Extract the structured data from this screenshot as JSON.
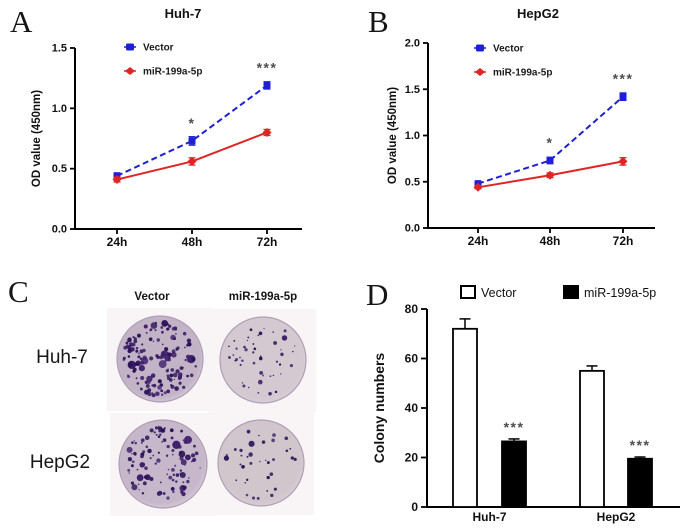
{
  "panels": {
    "a": "A",
    "b": "B",
    "c": "C",
    "d": "D"
  },
  "colors": {
    "vector_blue": "#1f1fd3",
    "mir_red": "#e02424",
    "star_gray": "#4d4d4d",
    "axis": "#000000",
    "colony_dot": "#2b1258"
  },
  "panel_c": {
    "column_labels": [
      "Vector",
      "miR-199a-5p"
    ],
    "row_labels": [
      "Huh-7",
      "HepG2"
    ],
    "dishes": [
      {
        "cell_line": "Huh-7",
        "group": "Vector",
        "dot_count": 150,
        "bg": "#c2b3c7",
        "density": "high"
      },
      {
        "cell_line": "Huh-7",
        "group": "miR-199a-5p",
        "dot_count": 48,
        "bg": "#d4c9d1",
        "density": "low"
      },
      {
        "cell_line": "HepG2",
        "group": "Vector",
        "dot_count": 105,
        "bg": "#c6b8ca",
        "density": "high"
      },
      {
        "cell_line": "HepG2",
        "group": "miR-199a-5p",
        "dot_count": 36,
        "bg": "#d1c6cb",
        "density": "low"
      }
    ]
  },
  "chart_data": [
    {
      "panel": "A",
      "type": "line",
      "title": "Huh-7",
      "ylabel": "OD value (450nm)",
      "x_categories": [
        "24h",
        "48h",
        "72h"
      ],
      "ylim": [
        0,
        1.5
      ],
      "yticks": [
        "0.0",
        "0.5",
        "1.0",
        "1.5"
      ],
      "series": [
        {
          "name": "Vector",
          "color": "#1f1fd3",
          "line": "dashed",
          "marker": "square",
          "values": [
            0.44,
            0.73,
            1.19
          ],
          "errors": [
            0.025,
            0.035,
            0.03
          ]
        },
        {
          "name": "miR-199a-5p",
          "color": "#e02424",
          "line": "solid",
          "marker": "diamond",
          "values": [
            0.41,
            0.56,
            0.8
          ],
          "errors": [
            0.02,
            0.03,
            0.025
          ]
        }
      ],
      "significance": [
        {
          "index": 1,
          "label": "*"
        },
        {
          "index": 2,
          "label": "***"
        }
      ]
    },
    {
      "panel": "B",
      "type": "line",
      "title": "HepG2",
      "ylabel": "OD value (450nm)",
      "x_categories": [
        "24h",
        "48h",
        "72h"
      ],
      "ylim": [
        0,
        2.0
      ],
      "yticks": [
        "0.0",
        "0.5",
        "1.0",
        "1.5",
        "2.0"
      ],
      "series": [
        {
          "name": "Vector",
          "color": "#1f1fd3",
          "line": "dashed",
          "marker": "square",
          "values": [
            0.48,
            0.73,
            1.42
          ],
          "errors": [
            0.02,
            0.035,
            0.04
          ]
        },
        {
          "name": "miR-199a-5p",
          "color": "#e02424",
          "line": "solid",
          "marker": "diamond",
          "values": [
            0.44,
            0.57,
            0.72
          ],
          "errors": [
            0.015,
            0.025,
            0.04
          ]
        }
      ],
      "significance": [
        {
          "index": 1,
          "label": "*"
        },
        {
          "index": 2,
          "label": "***"
        }
      ]
    },
    {
      "panel": "D",
      "type": "bar",
      "ylabel": "Colony numbers",
      "categories": [
        "Huh-7",
        "HepG2"
      ],
      "ylim": [
        0,
        80
      ],
      "yticks": [
        "0",
        "20",
        "40",
        "60",
        "80"
      ],
      "series": [
        {
          "name": "Vector",
          "fill": "#ffffff",
          "values": [
            72,
            55
          ],
          "errors": [
            4,
            2
          ]
        },
        {
          "name": "miR-199a-5p",
          "fill": "#000000",
          "values": [
            26.5,
            19.5
          ],
          "errors": [
            1,
            0.7
          ]
        }
      ],
      "significance": [
        {
          "series": 1,
          "index": 0,
          "label": "***"
        },
        {
          "series": 1,
          "index": 1,
          "label": "***"
        }
      ]
    }
  ]
}
